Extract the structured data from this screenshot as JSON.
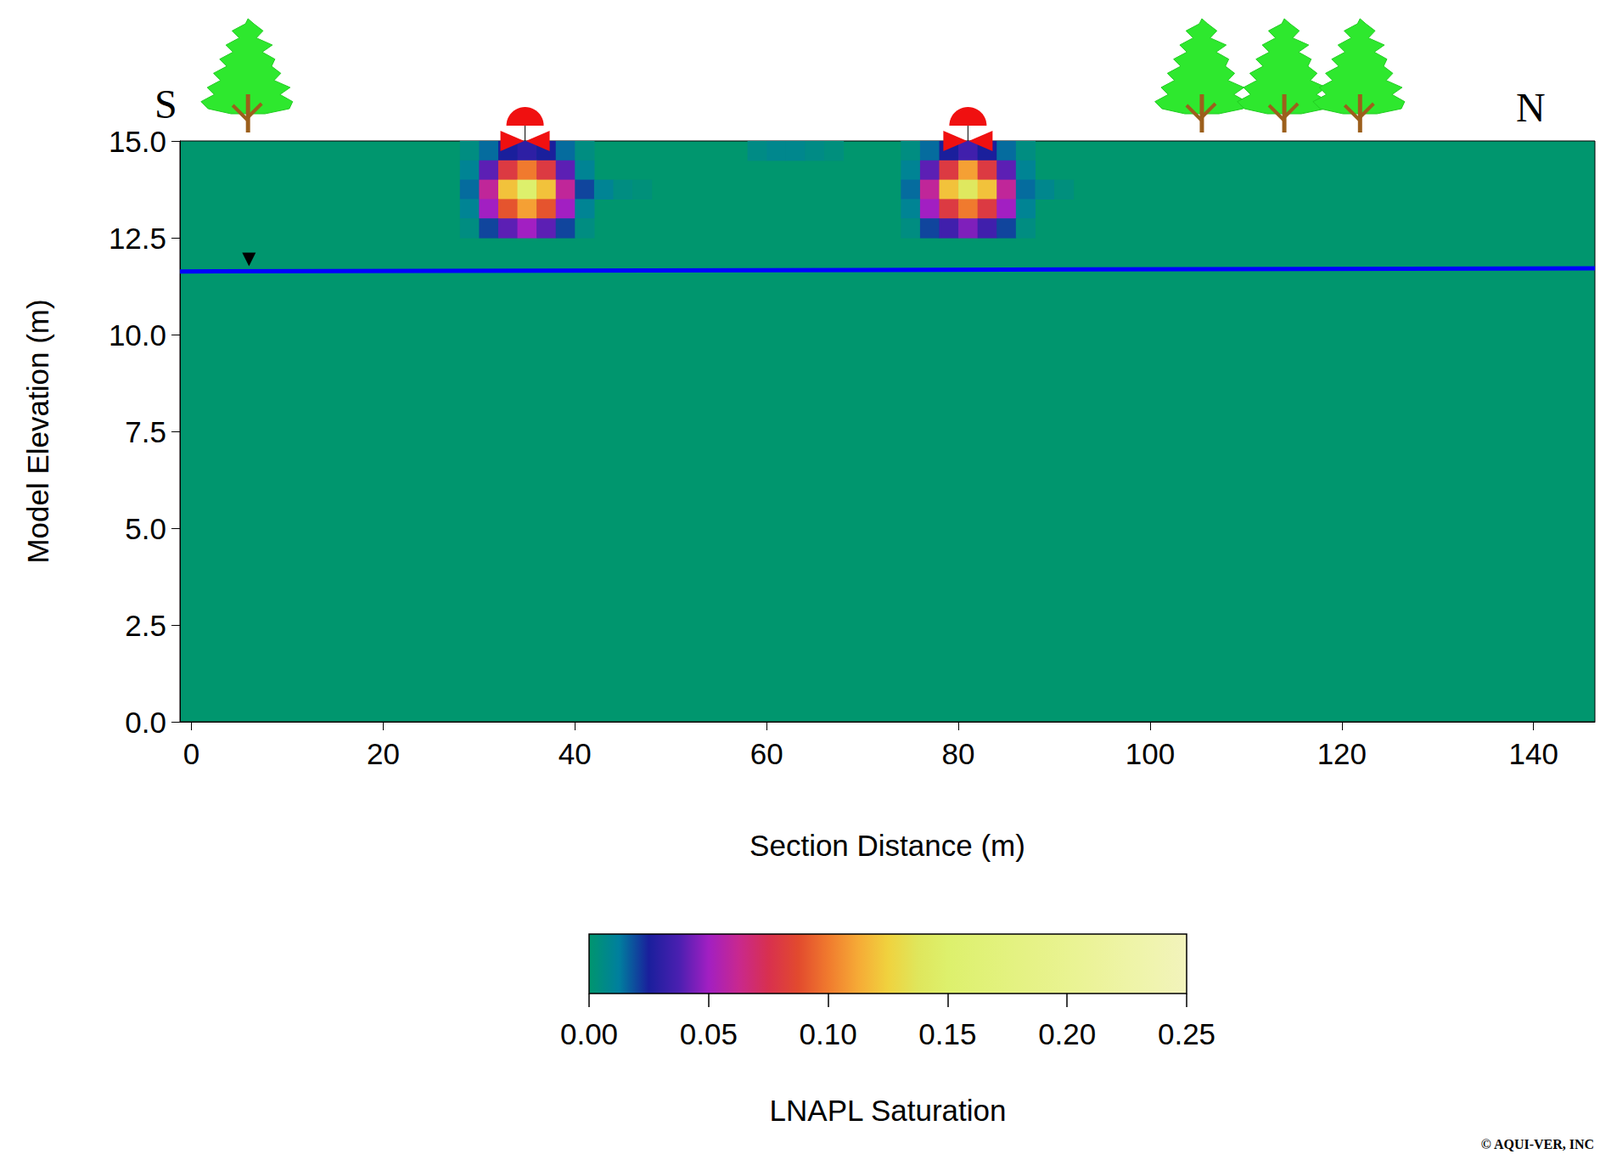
{
  "chart_data": {
    "type": "heatmap",
    "x_label": "Section Distance (m)",
    "y_label": "Model Elevation (m)",
    "xlim": [
      -1.2,
      146.4
    ],
    "xticks": [
      0,
      20,
      40,
      60,
      80,
      100,
      120,
      140
    ],
    "ylim": [
      0,
      15
    ],
    "yticks": [
      {
        "value": 0,
        "label": "0.0"
      },
      {
        "value": 2.5,
        "label": "2.5"
      },
      {
        "value": 5,
        "label": "5.0"
      },
      {
        "value": 7.5,
        "label": "7.5"
      },
      {
        "value": 10,
        "label": "10.0"
      },
      {
        "value": 12.5,
        "label": "12.5"
      },
      {
        "value": 15,
        "label": "15.0"
      }
    ],
    "grid": false,
    "cell_width": 2,
    "cell_height": 0.5,
    "cells": [
      [
        29,
        14.75,
        0.005
      ],
      [
        31,
        14.75,
        0.015
      ],
      [
        33,
        14.75,
        0.025
      ],
      [
        35,
        14.75,
        0.03
      ],
      [
        37,
        14.75,
        0.025
      ],
      [
        39,
        14.75,
        0.015
      ],
      [
        41,
        14.75,
        0.005
      ],
      [
        29,
        14.25,
        0.01
      ],
      [
        31,
        14.25,
        0.04
      ],
      [
        33,
        14.25,
        0.08
      ],
      [
        35,
        14.25,
        0.1
      ],
      [
        37,
        14.25,
        0.08
      ],
      [
        39,
        14.25,
        0.04
      ],
      [
        41,
        14.25,
        0.01
      ],
      [
        29,
        13.75,
        0.015
      ],
      [
        31,
        13.75,
        0.06
      ],
      [
        33,
        13.75,
        0.12
      ],
      [
        35,
        13.75,
        0.15
      ],
      [
        37,
        13.75,
        0.12
      ],
      [
        39,
        13.75,
        0.06
      ],
      [
        41,
        13.75,
        0.02
      ],
      [
        29,
        13.25,
        0.01
      ],
      [
        31,
        13.25,
        0.05
      ],
      [
        33,
        13.25,
        0.09
      ],
      [
        35,
        13.25,
        0.11
      ],
      [
        37,
        13.25,
        0.09
      ],
      [
        39,
        13.25,
        0.05
      ],
      [
        41,
        13.25,
        0.01
      ],
      [
        29,
        12.75,
        0.005
      ],
      [
        31,
        12.75,
        0.02
      ],
      [
        33,
        12.75,
        0.04
      ],
      [
        35,
        12.75,
        0.05
      ],
      [
        37,
        12.75,
        0.04
      ],
      [
        39,
        12.75,
        0.02
      ],
      [
        41,
        12.75,
        0.005
      ],
      [
        43,
        13.75,
        0.01
      ],
      [
        45,
        13.75,
        0.005
      ],
      [
        47,
        13.75,
        0.003
      ],
      [
        59,
        14.75,
        0.006
      ],
      [
        61,
        14.75,
        0.008
      ],
      [
        63,
        14.75,
        0.008
      ],
      [
        65,
        14.75,
        0.006
      ],
      [
        67,
        14.75,
        0.004
      ],
      [
        75,
        14.75,
        0.005
      ],
      [
        77,
        14.75,
        0.015
      ],
      [
        79,
        14.75,
        0.025
      ],
      [
        81,
        14.75,
        0.035
      ],
      [
        83,
        14.75,
        0.025
      ],
      [
        85,
        14.75,
        0.015
      ],
      [
        87,
        14.75,
        0.005
      ],
      [
        75,
        14.25,
        0.01
      ],
      [
        77,
        14.25,
        0.04
      ],
      [
        79,
        14.25,
        0.08
      ],
      [
        81,
        14.25,
        0.11
      ],
      [
        83,
        14.25,
        0.08
      ],
      [
        85,
        14.25,
        0.04
      ],
      [
        87,
        14.25,
        0.01
      ],
      [
        75,
        13.75,
        0.015
      ],
      [
        77,
        13.75,
        0.06
      ],
      [
        79,
        13.75,
        0.12
      ],
      [
        81,
        13.75,
        0.14
      ],
      [
        83,
        13.75,
        0.12
      ],
      [
        85,
        13.75,
        0.06
      ],
      [
        87,
        13.75,
        0.015
      ],
      [
        75,
        13.25,
        0.01
      ],
      [
        77,
        13.25,
        0.05
      ],
      [
        79,
        13.25,
        0.08
      ],
      [
        81,
        13.25,
        0.1
      ],
      [
        83,
        13.25,
        0.08
      ],
      [
        85,
        13.25,
        0.05
      ],
      [
        87,
        13.25,
        0.01
      ],
      [
        75,
        12.75,
        0.005
      ],
      [
        77,
        12.75,
        0.02
      ],
      [
        79,
        12.75,
        0.035
      ],
      [
        81,
        12.75,
        0.045
      ],
      [
        83,
        12.75,
        0.035
      ],
      [
        85,
        12.75,
        0.02
      ],
      [
        87,
        12.75,
        0.005
      ],
      [
        89,
        13.75,
        0.008
      ],
      [
        91,
        13.75,
        0.004
      ]
    ],
    "colorbar": {
      "label": "LNAPL Saturation",
      "range": [
        0,
        0.25
      ],
      "ticks": [
        {
          "value": 0,
          "label": "0.00"
        },
        {
          "value": 0.05,
          "label": "0.05"
        },
        {
          "value": 0.1,
          "label": "0.10"
        },
        {
          "value": 0.15,
          "label": "0.15"
        },
        {
          "value": 0.2,
          "label": "0.20"
        },
        {
          "value": 0.25,
          "label": "0.25"
        }
      ],
      "colors": [
        "#00966e",
        "#007f9e",
        "#1a1f9c",
        "#4a1fb0",
        "#a21fc2",
        "#c8288f",
        "#d8304f",
        "#e24a2e",
        "#f07a2e",
        "#f6aa36",
        "#f0d23e",
        "#dfe65c",
        "#ddf06c",
        "#e0f176",
        "#e3f27f",
        "#e6f288",
        "#e9f391",
        "#ecf39b",
        "#eef4a6",
        "#f0f4b0",
        "#f2f3bc"
      ]
    },
    "water_table": {
      "x": [
        -1.2,
        146.4
      ],
      "y": [
        11.63,
        11.71
      ],
      "color": "#0000ff",
      "marker_x": 6
    },
    "wells_x": [
      34.8,
      81
    ],
    "trees_x": [
      5.9,
      105.4,
      114,
      121.9
    ],
    "direction_labels": [
      "S",
      "N"
    ],
    "credit": "© AQUI-VER, INC"
  }
}
